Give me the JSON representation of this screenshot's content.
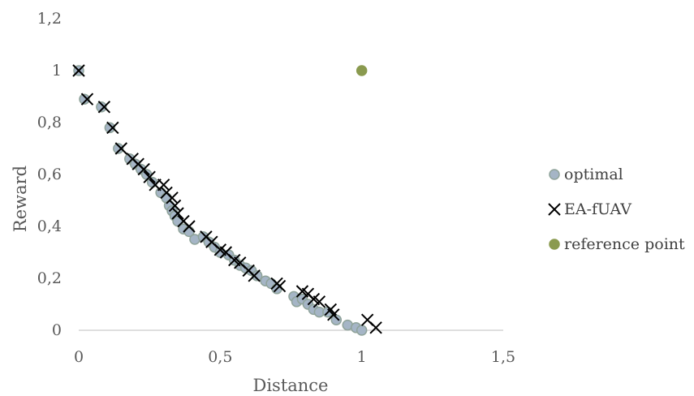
{
  "chart_data": {
    "type": "scatter",
    "xlabel": "Distance",
    "ylabel": "Reward",
    "xlim": [
      0,
      1.5
    ],
    "ylim": [
      0,
      1.2
    ],
    "x_ticks": [
      "0",
      "0,5",
      "1",
      "1,5"
    ],
    "y_ticks": [
      "0",
      "0,2",
      "0,4",
      "0,6",
      "0,8",
      "1",
      "1,2"
    ],
    "grid": false,
    "legend_position": "right",
    "series": [
      {
        "name": "optimal",
        "marker": "circle",
        "fill": "#a5b5c6",
        "stroke": "#8fa39a",
        "points": [
          [
            0.0,
            1.0
          ],
          [
            0.02,
            0.89
          ],
          [
            0.08,
            0.86
          ],
          [
            0.11,
            0.78
          ],
          [
            0.14,
            0.7
          ],
          [
            0.18,
            0.66
          ],
          [
            0.2,
            0.64
          ],
          [
            0.22,
            0.62
          ],
          [
            0.24,
            0.6
          ],
          [
            0.26,
            0.57
          ],
          [
            0.29,
            0.53
          ],
          [
            0.31,
            0.51
          ],
          [
            0.32,
            0.48
          ],
          [
            0.33,
            0.46
          ],
          [
            0.34,
            0.44
          ],
          [
            0.35,
            0.42
          ],
          [
            0.37,
            0.39
          ],
          [
            0.39,
            0.38
          ],
          [
            0.41,
            0.35
          ],
          [
            0.44,
            0.36
          ],
          [
            0.46,
            0.34
          ],
          [
            0.48,
            0.32
          ],
          [
            0.5,
            0.3
          ],
          [
            0.53,
            0.29
          ],
          [
            0.55,
            0.27
          ],
          [
            0.57,
            0.25
          ],
          [
            0.59,
            0.24
          ],
          [
            0.61,
            0.23
          ],
          [
            0.63,
            0.21
          ],
          [
            0.66,
            0.19
          ],
          [
            0.68,
            0.18
          ],
          [
            0.7,
            0.16
          ],
          [
            0.76,
            0.13
          ],
          [
            0.77,
            0.11
          ],
          [
            0.79,
            0.12
          ],
          [
            0.81,
            0.1
          ],
          [
            0.83,
            0.08
          ],
          [
            0.85,
            0.07
          ],
          [
            0.88,
            0.07
          ],
          [
            0.91,
            0.04
          ],
          [
            0.95,
            0.02
          ],
          [
            0.98,
            0.01
          ],
          [
            1.0,
            0.0
          ]
        ]
      },
      {
        "name": "EA-fUAV",
        "marker": "x",
        "stroke": "#000000",
        "points": [
          [
            0.0,
            1.0
          ],
          [
            0.03,
            0.89
          ],
          [
            0.09,
            0.86
          ],
          [
            0.12,
            0.78
          ],
          [
            0.15,
            0.7
          ],
          [
            0.19,
            0.66
          ],
          [
            0.21,
            0.64
          ],
          [
            0.23,
            0.62
          ],
          [
            0.25,
            0.59
          ],
          [
            0.27,
            0.56
          ],
          [
            0.3,
            0.56
          ],
          [
            0.31,
            0.53
          ],
          [
            0.33,
            0.51
          ],
          [
            0.34,
            0.48
          ],
          [
            0.35,
            0.45
          ],
          [
            0.37,
            0.42
          ],
          [
            0.39,
            0.4
          ],
          [
            0.45,
            0.36
          ],
          [
            0.47,
            0.34
          ],
          [
            0.5,
            0.31
          ],
          [
            0.52,
            0.3
          ],
          [
            0.55,
            0.27
          ],
          [
            0.57,
            0.26
          ],
          [
            0.6,
            0.23
          ],
          [
            0.62,
            0.21
          ],
          [
            0.7,
            0.18
          ],
          [
            0.71,
            0.17
          ],
          [
            0.79,
            0.15
          ],
          [
            0.81,
            0.14
          ],
          [
            0.83,
            0.12
          ],
          [
            0.85,
            0.11
          ],
          [
            0.89,
            0.08
          ],
          [
            0.9,
            0.06
          ],
          [
            1.02,
            0.04
          ],
          [
            1.05,
            0.01
          ]
        ]
      },
      {
        "name": "reference point",
        "marker": "circle",
        "fill": "#8a9a4f",
        "stroke": "#8a9a4f",
        "points": [
          [
            1.0,
            1.0
          ]
        ]
      }
    ]
  }
}
